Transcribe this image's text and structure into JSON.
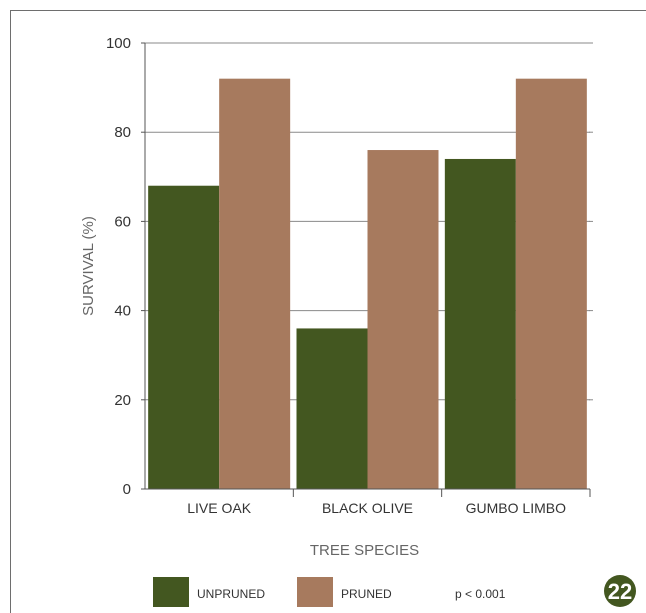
{
  "chart_data": {
    "type": "bar",
    "categories": [
      "LIVE OAK",
      "BLACK OLIVE",
      "GUMBO LIMBO"
    ],
    "series": [
      {
        "name": "UNPRUNED",
        "values": [
          68,
          36,
          74
        ],
        "color": "#435720"
      },
      {
        "name": "PRUNED",
        "values": [
          92,
          76,
          92
        ],
        "color": "#a77a5e"
      }
    ],
    "xlabel": "TREE SPECIES",
    "ylabel": "SURVIVAL (%)",
    "ylim": [
      0,
      100
    ],
    "yticks": [
      "0",
      "20",
      "40",
      "60",
      "80",
      "100"
    ],
    "grid": true,
    "legend_position": "bottom"
  },
  "annotation": "p < 0.001",
  "page_badge": {
    "text": "22",
    "color": "#435720"
  }
}
